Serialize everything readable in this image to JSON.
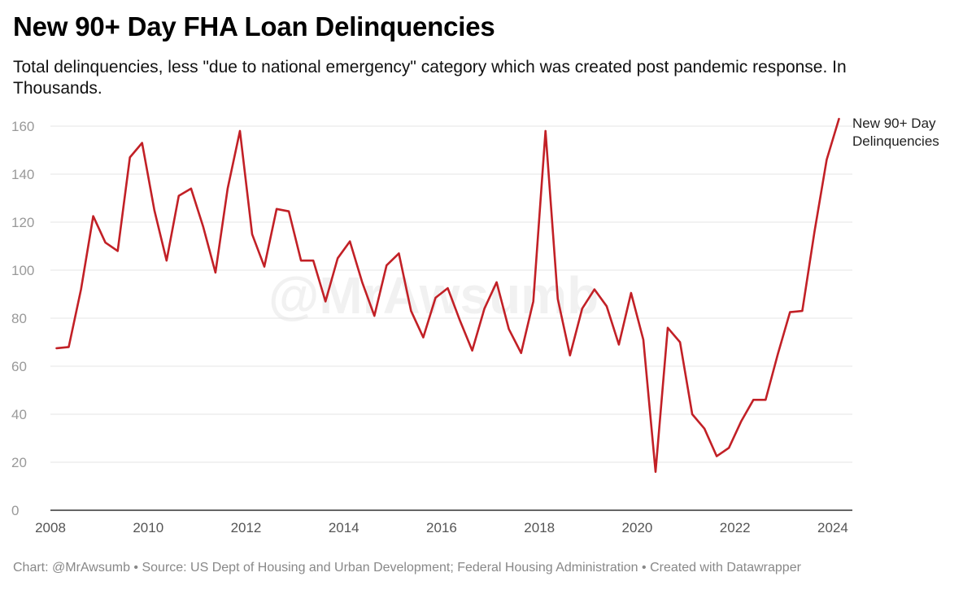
{
  "title": "New 90+ Day FHA Loan Delinquencies",
  "subtitle": "Total delinquencies, less \"due to national emergency\" category which was created post pandemic response. In Thousands.",
  "footer": "Chart: @MrAwsumb • Source: US Dept of Housing and Urban Development; Federal Housing Administration • Created with Datawrapper",
  "watermark": "@MrAwsumb",
  "colors": {
    "line": "#c22026",
    "grid": "#e4e4e4",
    "axis": "#333333",
    "tick_label": "#999999",
    "x_tick_label": "#555555"
  },
  "chart_data": {
    "type": "line",
    "title": "New 90+ Day FHA Loan Delinquencies",
    "xlabel": "",
    "ylabel": "",
    "xlim": [
      2008,
      2024.5
    ],
    "ylim": [
      0,
      160
    ],
    "x_ticks": [
      2008,
      2010,
      2012,
      2014,
      2016,
      2018,
      2020,
      2022,
      2024
    ],
    "y_ticks": [
      0,
      20,
      40,
      60,
      80,
      100,
      120,
      140,
      160
    ],
    "grid": true,
    "legend": "none",
    "series": [
      {
        "name": "New 90+ Day Delinquencies",
        "x": [
          2008.125,
          2008.375,
          2008.625,
          2008.875,
          2009.125,
          2009.375,
          2009.625,
          2009.875,
          2010.125,
          2010.375,
          2010.625,
          2010.875,
          2011.125,
          2011.375,
          2011.625,
          2011.875,
          2012.125,
          2012.375,
          2012.625,
          2012.875,
          2013.125,
          2013.375,
          2013.625,
          2013.875,
          2014.125,
          2014.375,
          2014.625,
          2014.875,
          2015.125,
          2015.375,
          2015.625,
          2015.875,
          2016.125,
          2016.375,
          2016.625,
          2016.875,
          2017.125,
          2017.375,
          2017.625,
          2017.875,
          2018.125,
          2018.375,
          2018.625,
          2018.875,
          2019.125,
          2019.375,
          2019.625,
          2019.875,
          2020.125,
          2020.375,
          2020.625,
          2020.875,
          2021.125,
          2021.375,
          2021.625,
          2021.875,
          2022.125,
          2022.375,
          2022.625,
          2022.875,
          2023.125,
          2023.375,
          2023.625,
          2023.875,
          2024.125
        ],
        "values": [
          67.5,
          68,
          92,
          122.5,
          111.5,
          108,
          147,
          153,
          125,
          104,
          131,
          134,
          118,
          99,
          134,
          158,
          115,
          101.5,
          125.5,
          124.5,
          104,
          104,
          87,
          105,
          112,
          95,
          81,
          102,
          107,
          83,
          72,
          88.5,
          92.5,
          79,
          66.5,
          84,
          95,
          75.5,
          65.5,
          87,
          158,
          88,
          64.5,
          84,
          92,
          85,
          69,
          90.5,
          71,
          16,
          76,
          70,
          40,
          34,
          22.5,
          26,
          37,
          46,
          46,
          65,
          82.5,
          83,
          116,
          146,
          163
        ]
      }
    ],
    "annotations": [
      "New 90+ Day",
      "Delinquencies"
    ]
  }
}
